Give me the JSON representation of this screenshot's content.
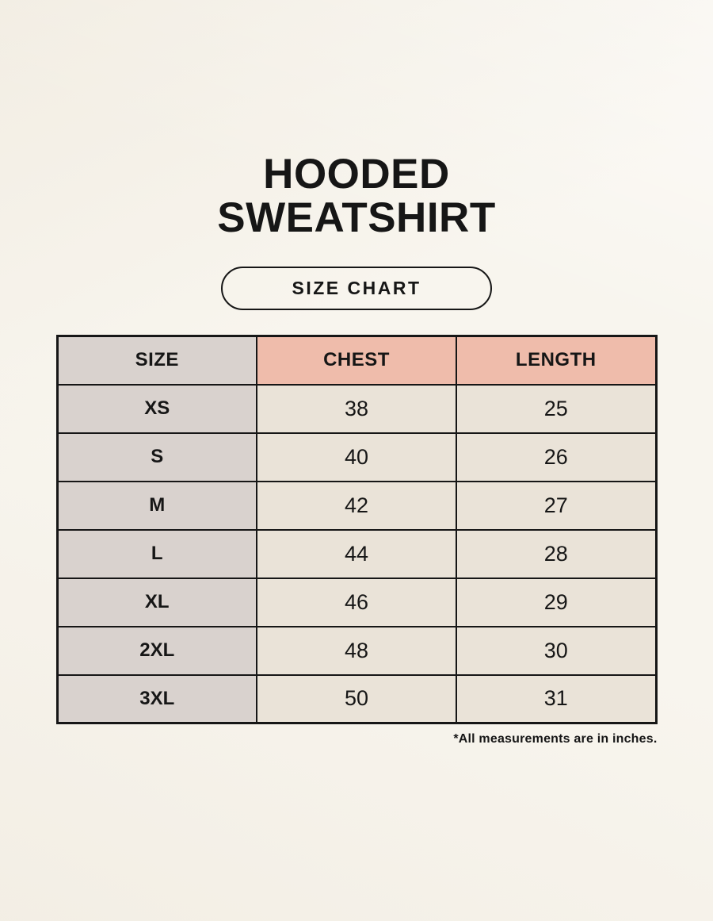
{
  "page": {
    "title_line1": "HOODED",
    "title_line2": "SWEATSHIRT",
    "size_chart_label": "SIZE CHART",
    "footnote": "*All measurements are in inches."
  },
  "colors": {
    "background": "#f8f5ee",
    "size_column_bg": "#d9d2ce",
    "measure_header_bg": "#efbcab",
    "data_cell_bg": "#eae3d8",
    "border": "#161616",
    "text": "#161616"
  },
  "chart_data": {
    "type": "table",
    "columns": [
      "SIZE",
      "CHEST",
      "LENGTH"
    ],
    "rows": [
      {
        "size": "XS",
        "chest": "38",
        "length": "25"
      },
      {
        "size": "S",
        "chest": "40",
        "length": "26"
      },
      {
        "size": "M",
        "chest": "42",
        "length": "27"
      },
      {
        "size": "L",
        "chest": "44",
        "length": "28"
      },
      {
        "size": "XL",
        "chest": "46",
        "length": "29"
      },
      {
        "size": "2XL",
        "chest": "48",
        "length": "30"
      },
      {
        "size": "3XL",
        "chest": "50",
        "length": "31"
      }
    ],
    "units_note": "*All measurements are in inches."
  }
}
